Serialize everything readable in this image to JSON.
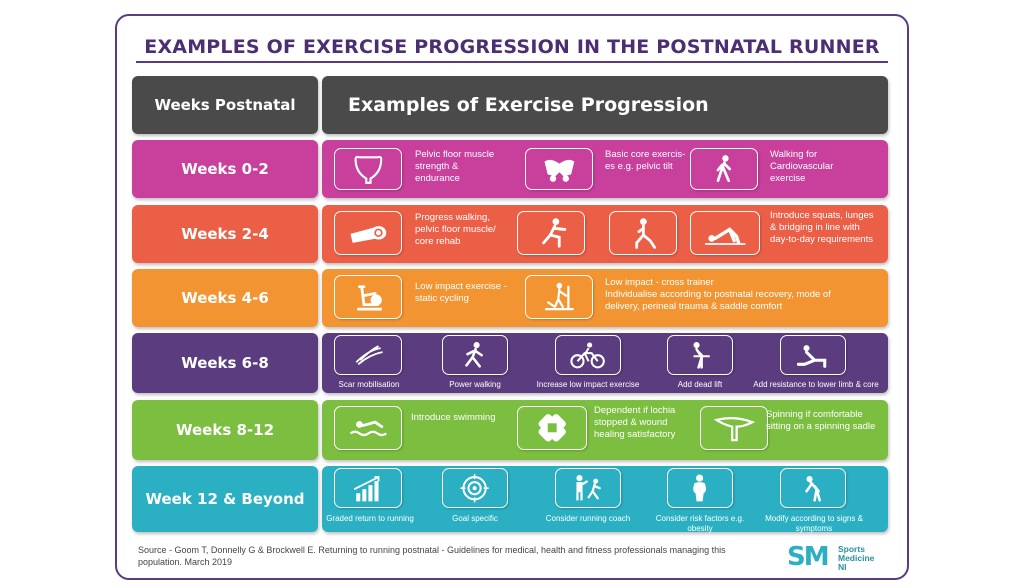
{
  "title": "EXAMPLES OF EXERCISE PROGRESSION IN THE POSTNATAL RUNNER",
  "colors": {
    "frame": "#5b3c7e",
    "header": "#4a4a4a",
    "weeks_0_2": "#c83f9c",
    "weeks_2_4": "#ec5f47",
    "weeks_4_6": "#f39433",
    "weeks_6_8": "#5b3c7e",
    "weeks_8_12": "#7cbe40",
    "week_12_beyond": "#2ab0c2"
  },
  "header": {
    "label": "Weeks Postnatal",
    "title": "Examples of Exercise Progression"
  },
  "rows": [
    {
      "label": "Weeks 0-2",
      "items": [
        {
          "icon": "pelvic-floor-icon",
          "text": "Pelvic floor muscle\nstrength &\nendurance"
        },
        {
          "icon": "pelvis-icon",
          "text": "Basic core exercis-\nes e.g. pelvic tilt"
        },
        {
          "icon": "walking-icon",
          "text": "Walking for\nCardiovascular\nexercise"
        }
      ]
    },
    {
      "label": "Weeks 2-4",
      "items": [
        {
          "icon": "yoga-mat-icon",
          "text": "Progress walking,\npelvic floor muscle/\ncore rehab"
        },
        {
          "icon": "squat-icon",
          "text": ""
        },
        {
          "icon": "lunge-icon",
          "text": ""
        },
        {
          "icon": "bridge-icon",
          "text": "Introduce squats, lunges\n& bridging in line with\nday-to-day requirements"
        }
      ]
    },
    {
      "label": "Weeks 4-6",
      "items": [
        {
          "icon": "exercise-bike-icon",
          "text": "Low impact exercise -\nstatic cycling"
        },
        {
          "icon": "cross-trainer-icon",
          "text": "Low impact - cross trainer\nIndividualise according to postnatal recovery, mode of\ndelivery, perineal trauma & saddle comfort"
        }
      ]
    },
    {
      "label": "Weeks 6-8",
      "items": [
        {
          "icon": "scar-icon",
          "text": "Scar mobilisation"
        },
        {
          "icon": "power-walking-icon",
          "text": "Power walking"
        },
        {
          "icon": "cycling-icon",
          "text": "Increase low impact exercise"
        },
        {
          "icon": "dead-lift-icon",
          "text": "Add dead lift"
        },
        {
          "icon": "resistance-icon",
          "text": "Add resistance to lower limb & core"
        }
      ]
    },
    {
      "label": "Weeks 8-12",
      "items": [
        {
          "icon": "swimming-icon",
          "text": "Introduce swimming"
        },
        {
          "icon": "bandage-icon",
          "text": "Dependent if lochia\nstopped & wound\nhealing satisfactory"
        },
        {
          "icon": "saddle-icon",
          "text": "Spinning if comfortable\nsitting on a spinning sadle"
        }
      ]
    },
    {
      "label": "Week 12 & Beyond",
      "items": [
        {
          "icon": "bar-chart-icon",
          "text": "Graded return to running"
        },
        {
          "icon": "target-icon",
          "text": "Goal specific"
        },
        {
          "icon": "running-coach-icon",
          "text": "Consider running coach"
        },
        {
          "icon": "person-icon",
          "text": "Consider risk factors e.g.\nobesity"
        },
        {
          "icon": "tired-person-icon",
          "text": "Modify according to signs &\nsymptoms"
        }
      ]
    }
  ],
  "source": "Source - Goom T, Donnelly G & Brockwell E. Returning to running postnatal - Guidelines for medical, health and fitness professionals managing this population. March 2019",
  "logo": {
    "mark": "SM",
    "line1": "Sports",
    "line2": "Medicine",
    "line3": "NI"
  }
}
